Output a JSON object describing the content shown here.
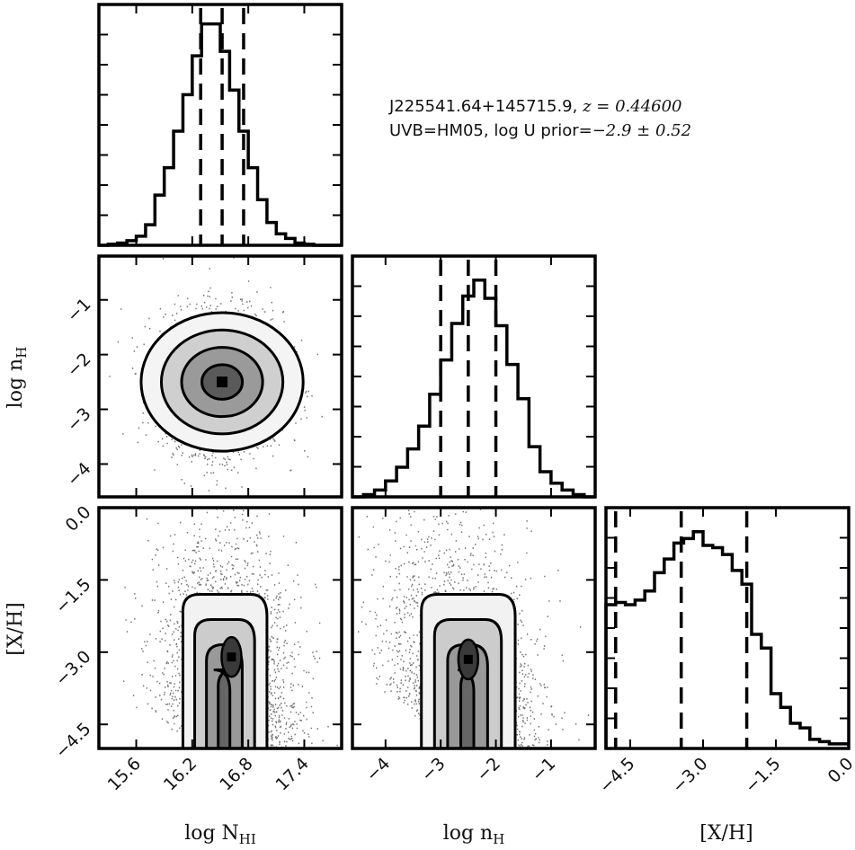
{
  "chart_data": {
    "type": "corner",
    "annotation": {
      "line1_text": "J225541.64+145715.9, ",
      "line1_math": "z = 0.44600",
      "line2_text": "UVB=HM05, log U prior=",
      "line2_math": "−2.9 ± 0.52"
    },
    "parameters": [
      {
        "name": "log N_HI",
        "label": "log N",
        "label_sub": "HI",
        "range": [
          15.2,
          17.8
        ],
        "ticks": [
          15.6,
          16.2,
          16.8,
          17.4
        ],
        "tick_labels": [
          "15.6",
          "16.2",
          "16.8",
          "17.4"
        ],
        "quantiles": [
          16.29,
          16.52,
          16.75
        ]
      },
      {
        "name": "log n_H",
        "label": "log n",
        "label_sub": "H",
        "range": [
          -4.6,
          -0.2
        ],
        "ticks": [
          -4,
          -3,
          -2,
          -1
        ],
        "tick_labels": [
          "−4",
          "−3",
          "−2",
          "−1"
        ],
        "quantiles": [
          -3.0,
          -2.5,
          -2.0
        ]
      },
      {
        "name": "[X/H]",
        "label": "[X/H]",
        "label_sub": "",
        "range": [
          -5.0,
          0.0
        ],
        "ticks": [
          -4.5,
          -3.0,
          -1.5,
          0.0
        ],
        "tick_labels": [
          "−4.5",
          "−3.0",
          "−1.5",
          "0.0"
        ],
        "quantiles": [
          -4.8,
          -3.45,
          -2.1
        ]
      }
    ],
    "hist_1d": [
      {
        "param": "log N_HI",
        "bin_edges": [
          15.2,
          15.3,
          15.4,
          15.5,
          15.6,
          15.7,
          15.8,
          15.9,
          16.0,
          16.1,
          16.2,
          16.3,
          16.4,
          16.5,
          16.6,
          16.7,
          16.8,
          16.9,
          17.0,
          17.1,
          17.2,
          17.3,
          17.4,
          17.5,
          17.6,
          17.7,
          17.8
        ],
        "counts": [
          0,
          0.005,
          0.01,
          0.02,
          0.04,
          0.09,
          0.22,
          0.34,
          0.5,
          0.66,
          0.83,
          0.97,
          0.97,
          0.85,
          0.68,
          0.5,
          0.34,
          0.2,
          0.1,
          0.05,
          0.03,
          0.01,
          0.005,
          0,
          0,
          0
        ]
      },
      {
        "param": "log n_H",
        "bin_edges": [
          -4.6,
          -4.4,
          -4.2,
          -4.0,
          -3.8,
          -3.6,
          -3.4,
          -3.2,
          -3.0,
          -2.8,
          -2.6,
          -2.4,
          -2.2,
          -2.0,
          -1.8,
          -1.6,
          -1.4,
          -1.2,
          -1.0,
          -0.8,
          -0.6,
          -0.4,
          -0.2
        ],
        "counts": [
          0,
          0.01,
          0.03,
          0.07,
          0.13,
          0.21,
          0.31,
          0.45,
          0.6,
          0.76,
          0.88,
          0.95,
          0.87,
          0.75,
          0.58,
          0.43,
          0.22,
          0.11,
          0.06,
          0.03,
          0.01,
          0
        ]
      },
      {
        "param": "[X/H]",
        "bin_edges": [
          -5.0,
          -4.8,
          -4.6,
          -4.4,
          -4.2,
          -4.0,
          -3.8,
          -3.6,
          -3.4,
          -3.2,
          -3.0,
          -2.8,
          -2.6,
          -2.4,
          -2.2,
          -2.0,
          -1.8,
          -1.6,
          -1.4,
          -1.2,
          -1.0,
          -0.8,
          -0.6,
          -0.4,
          -0.2,
          0.0
        ],
        "counts": [
          0.63,
          0.64,
          0.63,
          0.65,
          0.69,
          0.77,
          0.83,
          0.9,
          0.92,
          0.95,
          0.89,
          0.88,
          0.85,
          0.78,
          0.72,
          0.5,
          0.44,
          0.24,
          0.18,
          0.11,
          0.09,
          0.04,
          0.03,
          0.02,
          0.02
        ]
      }
    ],
    "hist_2d": [
      {
        "x_param": "log N_HI",
        "y_param": "log n_H",
        "center": [
          16.52,
          -2.5
        ],
        "sigma": [
          0.28,
          0.55
        ],
        "levels_sigma": [
          0.5,
          1.0,
          1.5,
          2.0
        ]
      },
      {
        "x_param": "log N_HI",
        "y_param": "[X/H]",
        "peak": [
          16.62,
          -3.1
        ],
        "x_extent": [
          16.1,
          17.0
        ],
        "y_extent": [
          -5.0,
          -1.8
        ]
      },
      {
        "x_param": "log n_H",
        "y_param": "[X/H]",
        "peak": [
          -2.5,
          -3.15
        ],
        "x_extent": [
          -3.35,
          -1.65
        ],
        "y_extent": [
          -5.0,
          -1.8
        ]
      }
    ]
  }
}
